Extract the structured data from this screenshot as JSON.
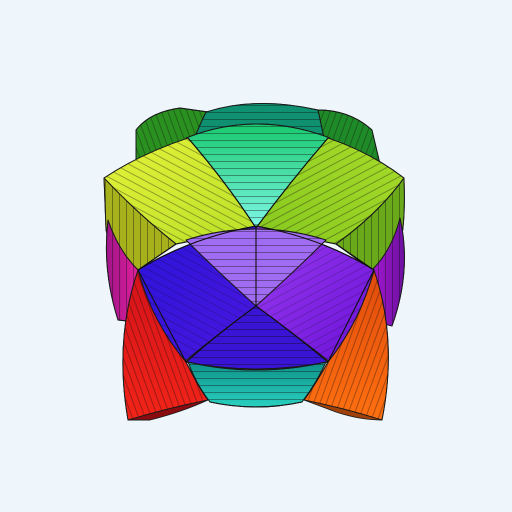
{
  "scene": {
    "subject": "3d-faceted-cube",
    "background": "#eef6fc",
    "edge_color": "#1a1a1a",
    "palette": {
      "top_back_dark": "#0f8f6a",
      "top_back_green": "#1e8a2a",
      "top_light_green": "#22e078",
      "top_cyan": "#7ff6e6",
      "top_yellow_green": "#d8ee2a",
      "top_lime": "#9bd628",
      "side_olive_left": "#a7b21e",
      "side_olive_right": "#6fae1c",
      "magenta_left": "#c0199a",
      "magenta_right": "#8a14b8",
      "front_blue": "#3510d8",
      "front_violet": "#7a12e8",
      "front_lavender": "#b57cf4",
      "red": "#e01414",
      "orange": "#f05a0a",
      "bottom_teal": "#17b3a4"
    }
  }
}
